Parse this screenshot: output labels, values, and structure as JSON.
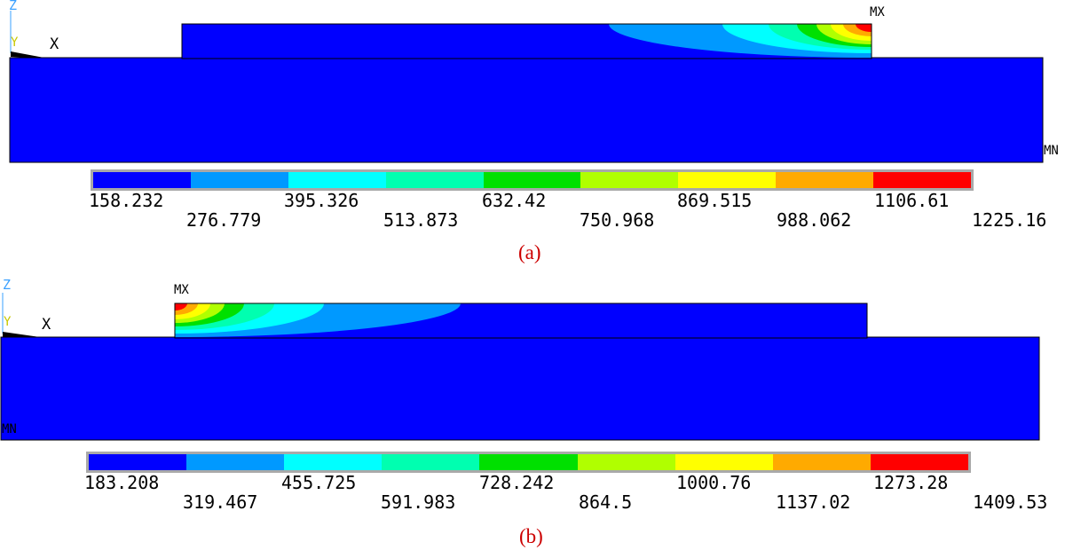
{
  "axes": {
    "z": "Z",
    "y": "Y",
    "x": "X"
  },
  "panel_a": {
    "max_tag": "MX",
    "min_tag": "MN",
    "legend_top": [
      "158.232",
      "395.326",
      "632.42",
      "869.515",
      "1106.61"
    ],
    "legend_bottom": [
      "276.779",
      "513.873",
      "750.968",
      "988.062",
      "1225.16"
    ],
    "caption": "(a)"
  },
  "panel_b": {
    "max_tag": "MX",
    "min_tag": "MN",
    "legend_top": [
      "183.208",
      "455.725",
      "728.242",
      "1000.76",
      "1273.28"
    ],
    "legend_bottom": [
      "319.467",
      "591.983",
      "864.5",
      "1137.02",
      "1409.53"
    ],
    "caption": "(b)"
  },
  "colors": {
    "band_1": "#0000ff",
    "band_2": "#0099ff",
    "band_3": "#00ffff",
    "band_4": "#00ffb0",
    "band_5": "#00e000",
    "band_6": "#b0ff00",
    "band_7": "#ffff00",
    "band_8": "#ffaa00",
    "band_9": "#ff0000"
  }
}
